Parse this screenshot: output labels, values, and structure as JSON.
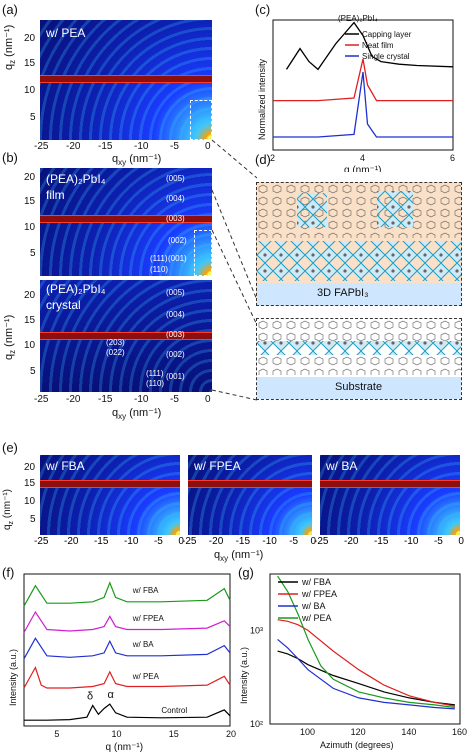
{
  "labels": {
    "a": "(a)",
    "b": "(b)",
    "c": "(c)",
    "d": "(d)",
    "e": "(e)",
    "f": "(f)",
    "g": "(g)"
  },
  "panel_a": {
    "inset": "w/ PEA",
    "ylabel": "q",
    "ysub": "z",
    "yunit": "(nm⁻¹)",
    "xlabel": "q",
    "xsub": "xy",
    "xunit": "(nm⁻¹)",
    "yticks": [
      "20",
      "15",
      "10",
      "5"
    ],
    "xticks": [
      "-25",
      "-20",
      "-15",
      "-10",
      "-5",
      "0"
    ]
  },
  "panel_b": {
    "film_label_1": "(PEA)₂PbI₄",
    "film_label_2": "film",
    "crystal_label_1": "(PEA)₂PbI₄",
    "crystal_label_2": "crystal",
    "film_hkl": [
      "(005)",
      "(004)",
      "(003)",
      "(002)",
      "(001)",
      "(111)",
      "(110)"
    ],
    "crystal_hkl": [
      "(005)",
      "(004)",
      "(003)",
      "(002)",
      "(001)",
      "(111)",
      "(110)",
      "(203)",
      "(022)"
    ],
    "ylabel": "q",
    "ysub": "z",
    "yunit": "(nm⁻¹)",
    "xlabel": "q",
    "xsub": "xy",
    "xunit": "(nm⁻¹)",
    "yticks": [
      "20",
      "15",
      "10",
      "5"
    ],
    "xticks": [
      "-25",
      "-20",
      "-15",
      "-10",
      "-5",
      "0"
    ]
  },
  "panel_c": {
    "legend_title": "(PEA)₂PbI₄",
    "ylabel": "Normalized intensity",
    "xlabel": "q (nm⁻¹)",
    "xticks": [
      "2",
      "4",
      "6"
    ],
    "series": [
      {
        "name": "Capping layer",
        "color": "#000000"
      },
      {
        "name": "Neat film",
        "color": "#e02020"
      },
      {
        "name": "Single crystal",
        "color": "#2030d0"
      }
    ]
  },
  "panel_d": {
    "top_label": "3D FAPbI₃",
    "bottom_label": "Substrate"
  },
  "panel_e": {
    "insets": [
      "w/ FBA",
      "w/ FPEA",
      "w/ BA"
    ],
    "ylabel": "q",
    "ysub": "z",
    "yunit": "(nm⁻¹)",
    "xlabel": "q",
    "xsub": "xy",
    "xunit": "(nm⁻¹)",
    "yticks": [
      "20",
      "15",
      "10",
      "5"
    ],
    "xticks_1": [
      "-25",
      "-20",
      "-15",
      "-10",
      "-5",
      "0"
    ],
    "xticks_2": [
      "-25",
      "-20",
      "-15",
      "-10",
      "-5",
      "0"
    ],
    "xticks_3": [
      "-25",
      "-20",
      "-15",
      "-10",
      "-5",
      "0"
    ]
  },
  "panel_f": {
    "ylabel": "Intensity (a.u.)",
    "xlabel": "q (nm⁻¹)",
    "xticks": [
      "5",
      "10",
      "15",
      "20"
    ],
    "series": [
      {
        "name": "w/  FBA",
        "color": "#1a9a1a"
      },
      {
        "name": "w/  FPEA",
        "color": "#d020d0"
      },
      {
        "name": "w/  BA",
        "color": "#2030d0"
      },
      {
        "name": "w/  PEA",
        "color": "#e02020"
      },
      {
        "name": "Control",
        "color": "#000000"
      }
    ],
    "annot_delta": "δ",
    "annot_alpha": "α"
  },
  "panel_g": {
    "ylabel": "Intensity (a.u.)",
    "xlabel": "Azimuth (degrees)",
    "xticks": [
      "100",
      "120",
      "140",
      "160"
    ],
    "yticks": [
      "10³",
      "10²"
    ],
    "series": [
      {
        "name": "w/  FBA",
        "color": "#000000"
      },
      {
        "name": "w/  FPEA",
        "color": "#e02020"
      },
      {
        "name": "w/  BA",
        "color": "#2030d0"
      },
      {
        "name": "w/  PEA",
        "color": "#1a9a1a"
      }
    ]
  },
  "chart_data": [
    {
      "type": "line",
      "panel": "c",
      "xlabel": "q (nm⁻¹)",
      "ylabel": "Normalized intensity",
      "xlim": [
        2,
        6
      ],
      "series": [
        {
          "name": "Capping layer",
          "x": [
            2.3,
            2.6,
            2.8,
            3.0,
            3.2,
            3.4,
            3.6,
            3.8,
            4.0,
            4.2,
            4.4,
            4.8,
            5.2,
            6.0
          ],
          "y": [
            0.62,
            0.78,
            0.68,
            0.62,
            0.72,
            0.82,
            0.9,
            0.98,
            0.88,
            0.72,
            0.68,
            0.66,
            0.65,
            0.64
          ]
        },
        {
          "name": "Neat film",
          "x": [
            2.0,
            3.0,
            3.8,
            4.0,
            4.1,
            4.3,
            5.0,
            6.0
          ],
          "y": [
            0.38,
            0.38,
            0.4,
            0.7,
            0.5,
            0.38,
            0.38,
            0.38
          ]
        },
        {
          "name": "Single crystal",
          "x": [
            2.0,
            3.0,
            3.8,
            4.0,
            4.1,
            4.3,
            5.0,
            6.0
          ],
          "y": [
            0.1,
            0.1,
            0.12,
            0.6,
            0.2,
            0.1,
            0.1,
            0.1
          ]
        }
      ]
    },
    {
      "type": "line",
      "panel": "f",
      "xlabel": "q (nm⁻¹)",
      "ylabel": "Intensity (a.u.)",
      "xlim": [
        2,
        20
      ],
      "series": [
        {
          "name": "w/  FBA",
          "x": [
            2,
            3,
            4,
            6,
            8,
            9,
            9.5,
            10,
            11,
            14,
            18,
            19.5,
            20
          ],
          "y": [
            4.1,
            4.8,
            4.2,
            4.2,
            4.25,
            4.4,
            4.9,
            4.4,
            4.25,
            4.25,
            4.3,
            4.7,
            4.3
          ]
        },
        {
          "name": "w/  FPEA",
          "x": [
            2,
            3,
            4,
            6,
            8,
            9,
            9.5,
            10,
            11,
            14,
            18,
            19.5,
            20
          ],
          "y": [
            3.2,
            3.9,
            3.3,
            3.25,
            3.3,
            3.4,
            3.75,
            3.4,
            3.3,
            3.3,
            3.35,
            3.6,
            3.4
          ]
        },
        {
          "name": "w/  BA",
          "x": [
            2,
            3,
            4,
            6,
            8,
            9,
            9.5,
            10,
            11,
            14,
            18,
            19.5,
            20
          ],
          "y": [
            2.3,
            3.0,
            2.4,
            2.35,
            2.4,
            2.5,
            2.9,
            2.5,
            2.4,
            2.4,
            2.45,
            2.75,
            2.5
          ]
        },
        {
          "name": "w/  PEA",
          "x": [
            2,
            3,
            3.5,
            4,
            6,
            8,
            9,
            9.5,
            10,
            11,
            14,
            18,
            19.5,
            20
          ],
          "y": [
            1.3,
            2.0,
            1.4,
            1.3,
            1.3,
            1.35,
            1.45,
            1.85,
            1.45,
            1.35,
            1.35,
            1.4,
            1.7,
            1.4
          ]
        },
        {
          "name": "Control",
          "x": [
            2,
            4,
            6,
            7.5,
            8,
            8.5,
            9,
            9.5,
            10,
            11,
            14,
            18,
            19.5,
            20
          ],
          "y": [
            0.2,
            0.2,
            0.22,
            0.3,
            0.7,
            0.4,
            0.6,
            0.75,
            0.45,
            0.3,
            0.28,
            0.3,
            0.55,
            0.35
          ]
        }
      ]
    },
    {
      "type": "line",
      "panel": "g",
      "xlabel": "Azimuth (degrees)",
      "ylabel": "Intensity (a.u.)",
      "xlim": [
        85,
        160
      ],
      "ylim": [
        100,
        4000
      ],
      "yscale": "log",
      "series": [
        {
          "name": "w/  FBA",
          "x": [
            88,
            92,
            96,
            100,
            110,
            120,
            130,
            140,
            150,
            158
          ],
          "y": [
            600,
            560,
            500,
            430,
            330,
            270,
            220,
            190,
            170,
            160
          ]
        },
        {
          "name": "w/  FPEA",
          "x": [
            88,
            92,
            96,
            100,
            110,
            120,
            130,
            140,
            150,
            158
          ],
          "y": [
            1300,
            1250,
            1150,
            1000,
            600,
            380,
            260,
            200,
            170,
            155
          ]
        },
        {
          "name": "w/  BA",
          "x": [
            88,
            92,
            96,
            100,
            110,
            120,
            130,
            140,
            150,
            158
          ],
          "y": [
            800,
            650,
            500,
            380,
            240,
            190,
            170,
            160,
            150,
            145
          ]
        },
        {
          "name": "w/  PEA",
          "x": [
            88,
            92,
            96,
            100,
            105,
            110,
            120,
            130,
            140,
            150,
            158
          ],
          "y": [
            3800,
            2600,
            1500,
            800,
            420,
            300,
            220,
            190,
            170,
            160,
            150
          ]
        }
      ]
    }
  ]
}
